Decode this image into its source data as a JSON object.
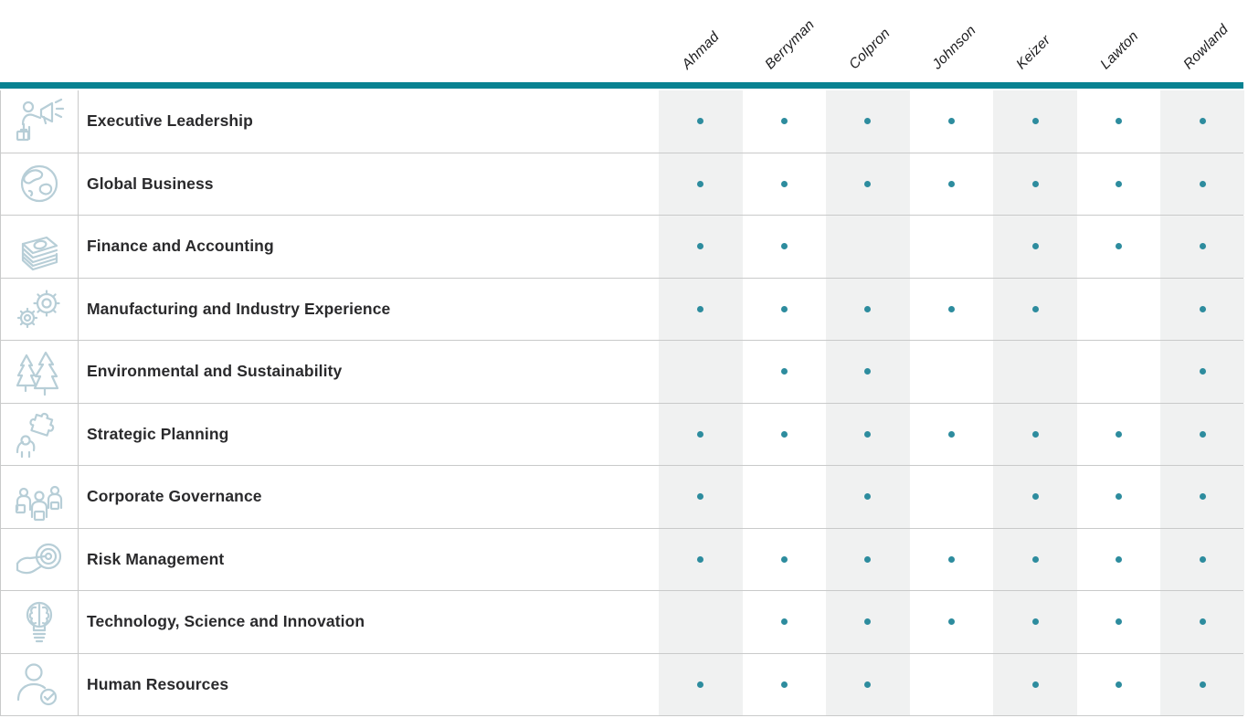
{
  "colors": {
    "accent": "#088291",
    "dot": "#2d8c9e",
    "stripe": "#f0f1f1",
    "icon": "#b7ced7",
    "row_border": "#c9caca",
    "label_text": "#2a2a2c"
  },
  "chart_data": {
    "type": "table",
    "legend_position": "none",
    "mark_style": "teal dot = skill present",
    "columns": [
      "Ahmad",
      "Berryman",
      "Colpron",
      "Johnson",
      "Keizer",
      "Lawton",
      "Rowland"
    ],
    "rows": [
      {
        "label": "Executive Leadership",
        "icon": "megaphone-leader-icon",
        "values": [
          1,
          1,
          1,
          1,
          1,
          1,
          1
        ]
      },
      {
        "label": "Global Business",
        "icon": "globe-icon",
        "values": [
          1,
          1,
          1,
          1,
          1,
          1,
          1
        ]
      },
      {
        "label": "Finance and Accounting",
        "icon": "money-stack-icon",
        "values": [
          1,
          1,
          0,
          0,
          1,
          1,
          1
        ]
      },
      {
        "label": "Manufacturing and Industry Experience",
        "icon": "gears-icon",
        "values": [
          1,
          1,
          1,
          1,
          1,
          0,
          1
        ]
      },
      {
        "label": "Environmental and Sustainability",
        "icon": "pine-trees-icon",
        "values": [
          0,
          1,
          1,
          0,
          0,
          0,
          1
        ]
      },
      {
        "label": "Strategic Planning",
        "icon": "puzzle-piece-icon",
        "values": [
          1,
          1,
          1,
          1,
          1,
          1,
          1
        ]
      },
      {
        "label": "Corporate Governance",
        "icon": "people-group-icon",
        "values": [
          1,
          0,
          1,
          0,
          1,
          1,
          1
        ]
      },
      {
        "label": "Risk Management",
        "icon": "hand-target-icon",
        "values": [
          1,
          1,
          1,
          1,
          1,
          1,
          1
        ]
      },
      {
        "label": "Technology, Science and Innovation",
        "icon": "brain-bulb-icon",
        "values": [
          0,
          1,
          1,
          1,
          1,
          1,
          1
        ]
      },
      {
        "label": "Human Resources",
        "icon": "person-check-icon",
        "values": [
          1,
          1,
          1,
          0,
          1,
          1,
          1
        ]
      }
    ]
  }
}
